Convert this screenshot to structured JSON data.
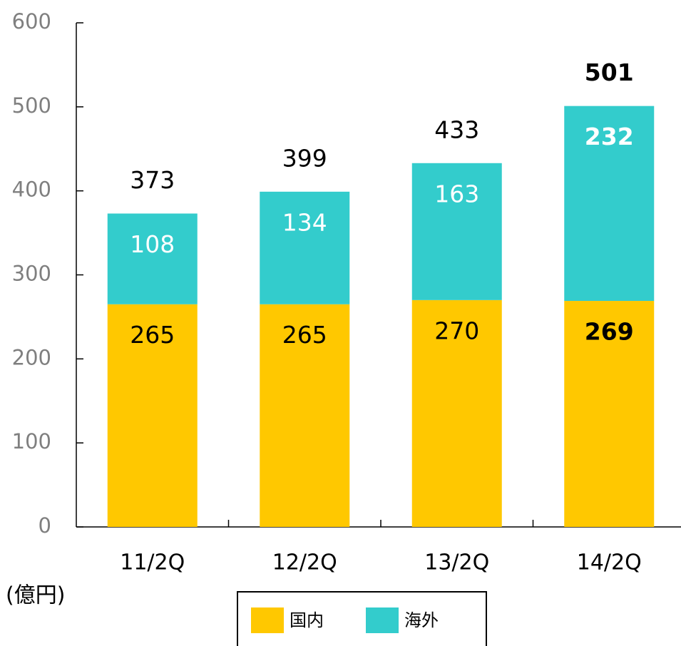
{
  "chart_data": {
    "type": "stacked_bar",
    "categories": [
      "11/2Q",
      "12/2Q",
      "13/2Q",
      "14/2Q"
    ],
    "series": [
      {
        "name": "国内",
        "color": "#ffc800",
        "label_color": "#000000",
        "values": [
          265,
          265,
          270,
          269
        ]
      },
      {
        "name": "海外",
        "color": "#33cccc",
        "label_color": "#ffffff",
        "values": [
          108,
          134,
          163,
          232
        ]
      }
    ],
    "totals": [
      373,
      399,
      433,
      501
    ],
    "bold_index": 3,
    "unit_label": "(億円)",
    "ylim": [
      0,
      600
    ],
    "yticks": [
      0,
      100,
      200,
      300,
      400,
      500,
      600
    ]
  }
}
